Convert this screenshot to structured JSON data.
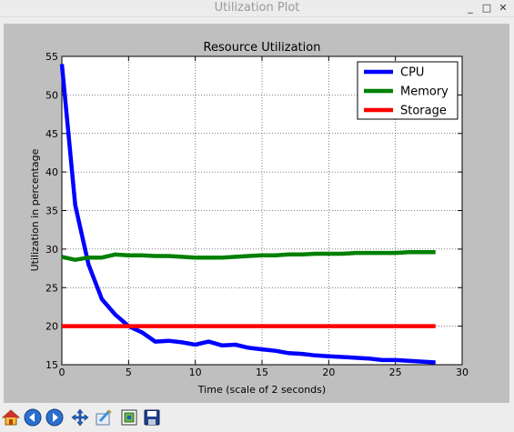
{
  "window": {
    "title": "Utilization Plot",
    "minimize_glyph": "_",
    "maximize_glyph": "□",
    "close_glyph": "✕"
  },
  "toolbar": {
    "buttons": [
      {
        "name": "home-icon"
      },
      {
        "name": "back-icon"
      },
      {
        "name": "forward-icon"
      },
      {
        "name": "pan-icon"
      },
      {
        "name": "zoom-icon"
      },
      {
        "name": "configure-subplots-icon"
      },
      {
        "name": "save-icon"
      }
    ]
  },
  "chart_data": {
    "type": "line",
    "title": "Resource Utilization",
    "xlabel": "Time (scale of 2 seconds)",
    "ylabel": "Utilization in percentage",
    "xlim": [
      0,
      30
    ],
    "ylim": [
      15,
      55
    ],
    "xticks": [
      0,
      5,
      10,
      15,
      20,
      25,
      30
    ],
    "yticks": [
      15,
      20,
      25,
      30,
      35,
      40,
      45,
      50,
      55
    ],
    "grid": true,
    "legend_position": "top-right",
    "x": [
      0,
      1,
      2,
      3,
      4,
      5,
      6,
      7,
      8,
      9,
      10,
      11,
      12,
      13,
      14,
      15,
      16,
      17,
      18,
      19,
      20,
      21,
      22,
      23,
      24,
      25,
      26,
      27,
      28
    ],
    "series": [
      {
        "name": "CPU",
        "color": "#0000ff",
        "values": [
          54,
          35.7,
          28,
          23.5,
          21.5,
          20,
          19.2,
          18,
          18.1,
          17.9,
          17.6,
          18,
          17.5,
          17.6,
          17.2,
          17,
          16.8,
          16.5,
          16.4,
          16.2,
          16.1,
          16,
          15.9,
          15.8,
          15.6,
          15.6,
          15.5,
          15.4,
          15.3
        ]
      },
      {
        "name": "Memory",
        "color": "#008000",
        "values": [
          29,
          28.6,
          28.9,
          28.9,
          29.3,
          29.2,
          29.2,
          29.1,
          29.1,
          29,
          28.9,
          28.9,
          28.9,
          29,
          29.1,
          29.2,
          29.2,
          29.3,
          29.3,
          29.4,
          29.4,
          29.4,
          29.5,
          29.5,
          29.5,
          29.5,
          29.6,
          29.6,
          29.6
        ]
      },
      {
        "name": "Storage",
        "color": "#ff0000",
        "values": [
          20,
          20,
          20,
          20,
          20,
          20,
          20,
          20,
          20,
          20,
          20,
          20,
          20,
          20,
          20,
          20,
          20,
          20,
          20,
          20,
          20,
          20,
          20,
          20,
          20,
          20,
          20,
          20,
          20
        ]
      }
    ]
  }
}
